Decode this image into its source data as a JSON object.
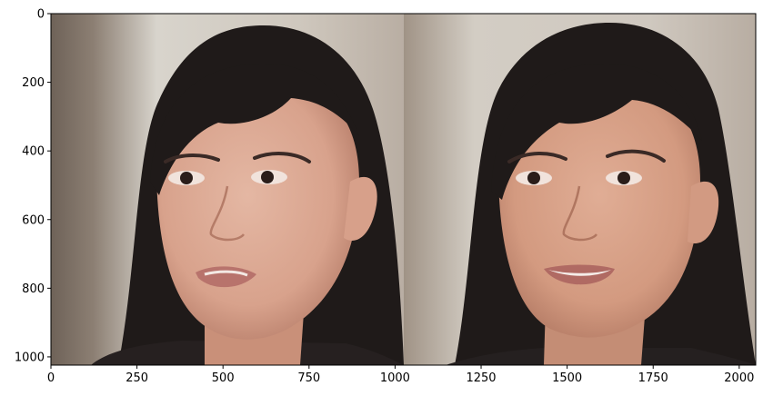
{
  "chart_data": {
    "type": "image",
    "title": "",
    "xlabel": "",
    "ylabel": "",
    "xlim": [
      0,
      2048
    ],
    "ylim": [
      1024,
      0
    ],
    "grid": false,
    "x_ticks": [
      0,
      250,
      500,
      750,
      1000,
      1250,
      1500,
      1750,
      2000
    ],
    "y_ticks": [
      0,
      200,
      400,
      600,
      800,
      1000
    ],
    "panels": [
      {
        "x_range": [
          0,
          1024
        ],
        "content": "portrait photo of a woman with dark shoulder-length hair and bangs, mouth slightly open, neutral expression"
      },
      {
        "x_range": [
          1024,
          2048
        ],
        "content": "portrait photo of a woman with dark shoulder-length hair and bangs, smiling showing teeth"
      }
    ]
  },
  "colors": {
    "axis": "#000000",
    "background": "#ffffff",
    "hair": "#1f1a19",
    "skin": "#d9a590",
    "backdrop_light": "#d8d4cc",
    "backdrop_dark": "#6e6258"
  }
}
